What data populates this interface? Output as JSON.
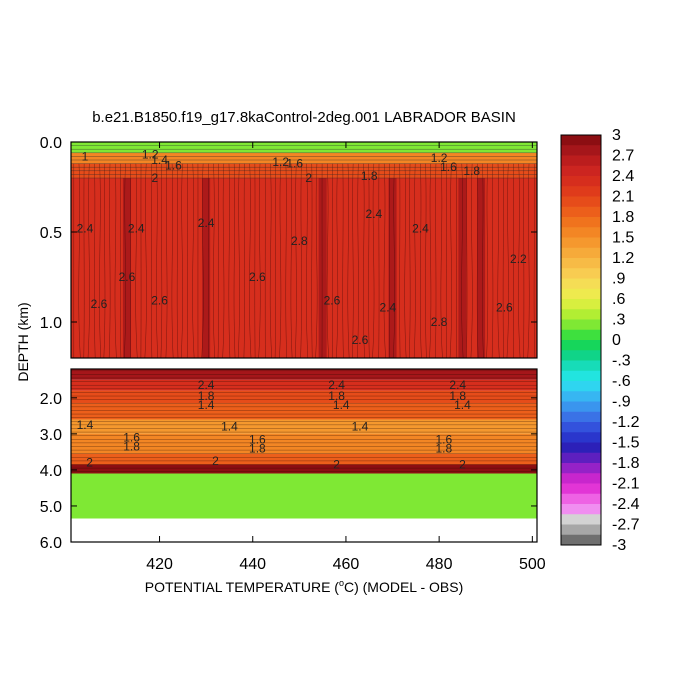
{
  "chart_data": {
    "type": "contour",
    "title": "b.e21.B1850.f19_g17.8kaControl-2deg.001 LABRADOR BASIN",
    "xlabel": "POTENTIAL TEMPERATURE (°C) (MODEL - OBS)",
    "xlabel_parts": [
      "POTENTIAL TEMPERATURE (",
      "o",
      "C) (MODEL - OBS)"
    ],
    "ylabel": "DEPTH (km)",
    "xlim": [
      401,
      501
    ],
    "x_ticks": [
      420,
      440,
      460,
      480,
      500
    ],
    "x_tick_labels": [
      "420",
      "440",
      "460",
      "480",
      "500"
    ],
    "panels": [
      {
        "name": "upper",
        "ylim": [
          0.0,
          1.2
        ],
        "y_ticks": [
          0.0,
          0.5,
          1.0
        ],
        "y_tick_labels": [
          "0.0",
          "0.5",
          "1.0"
        ],
        "bands": [
          {
            "top": 0.0,
            "bottom": 0.06,
            "value": 0.3
          },
          {
            "top": 0.06,
            "bottom": 0.12,
            "value": 1.6
          },
          {
            "top": 0.12,
            "bottom": 0.2,
            "value": 2.1
          },
          {
            "top": 0.2,
            "bottom": 1.2,
            "value": 2.4
          }
        ],
        "warm_columns": [
          413,
          430,
          455,
          470,
          485,
          489
        ],
        "contour_labels": [
          {
            "x": 404,
            "y": 0.08,
            "text": "1"
          },
          {
            "x": 418,
            "y": 0.07,
            "text": "1.2"
          },
          {
            "x": 420,
            "y": 0.1,
            "text": "1.4"
          },
          {
            "x": 423,
            "y": 0.13,
            "text": "1.6"
          },
          {
            "x": 446,
            "y": 0.11,
            "text": "1.2"
          },
          {
            "x": 449,
            "y": 0.12,
            "text": "1.6"
          },
          {
            "x": 480,
            "y": 0.09,
            "text": "1.2"
          },
          {
            "x": 482,
            "y": 0.14,
            "text": "1.6"
          },
          {
            "x": 487,
            "y": 0.16,
            "text": "1.8"
          },
          {
            "x": 419,
            "y": 0.2,
            "text": "2"
          },
          {
            "x": 452,
            "y": 0.2,
            "text": "2"
          },
          {
            "x": 465,
            "y": 0.19,
            "text": "1.8"
          },
          {
            "x": 404,
            "y": 0.48,
            "text": "2.4"
          },
          {
            "x": 415,
            "y": 0.48,
            "text": "2.4"
          },
          {
            "x": 430,
            "y": 0.45,
            "text": "2.4"
          },
          {
            "x": 450,
            "y": 0.55,
            "text": "2.8"
          },
          {
            "x": 466,
            "y": 0.4,
            "text": "2.4"
          },
          {
            "x": 476,
            "y": 0.48,
            "text": "2.4"
          },
          {
            "x": 497,
            "y": 0.65,
            "text": "2.2"
          },
          {
            "x": 407,
            "y": 0.9,
            "text": "2.6"
          },
          {
            "x": 413,
            "y": 0.75,
            "text": "2.6"
          },
          {
            "x": 420,
            "y": 0.88,
            "text": "2.6"
          },
          {
            "x": 441,
            "y": 0.75,
            "text": "2.6"
          },
          {
            "x": 457,
            "y": 0.88,
            "text": "2.6"
          },
          {
            "x": 469,
            "y": 0.92,
            "text": "2.4"
          },
          {
            "x": 480,
            "y": 1.0,
            "text": "2.8"
          },
          {
            "x": 494,
            "y": 0.92,
            "text": "2.6"
          },
          {
            "x": 463,
            "y": 1.1,
            "text": "2.6"
          }
        ]
      },
      {
        "name": "lower",
        "ylim": [
          1.2,
          6.0
        ],
        "y_ticks": [
          2.0,
          3.0,
          4.0,
          5.0,
          6.0
        ],
        "y_tick_labels": [
          "2.0",
          "3.0",
          "4.0",
          "5.0",
          "6.0"
        ],
        "bands": [
          {
            "top": 1.2,
            "bottom": 1.5,
            "value": 2.7
          },
          {
            "top": 1.5,
            "bottom": 1.8,
            "value": 2.4
          },
          {
            "top": 1.8,
            "bottom": 2.15,
            "value": 2.1
          },
          {
            "top": 2.15,
            "bottom": 2.6,
            "value": 1.8
          },
          {
            "top": 2.6,
            "bottom": 3.0,
            "value": 1.5
          },
          {
            "top": 3.0,
            "bottom": 3.55,
            "value": 1.65
          },
          {
            "top": 3.55,
            "bottom": 3.85,
            "value": 1.9
          },
          {
            "top": 3.85,
            "bottom": 4.1,
            "value": 2.9
          },
          {
            "top": 4.1,
            "bottom": 5.35,
            "value": 0.3
          }
        ],
        "contour_labels": [
          {
            "x": 430,
            "y": 1.65,
            "text": "2.4"
          },
          {
            "x": 430,
            "y": 1.95,
            "text": "1.8"
          },
          {
            "x": 430,
            "y": 2.2,
            "text": "1.4"
          },
          {
            "x": 458,
            "y": 1.65,
            "text": "2.4"
          },
          {
            "x": 458,
            "y": 1.95,
            "text": "1.8"
          },
          {
            "x": 459,
            "y": 2.2,
            "text": "1.4"
          },
          {
            "x": 484,
            "y": 1.65,
            "text": "2.4"
          },
          {
            "x": 484,
            "y": 1.95,
            "text": "1.8"
          },
          {
            "x": 485,
            "y": 2.2,
            "text": "1.4"
          },
          {
            "x": 404,
            "y": 2.75,
            "text": "1.4"
          },
          {
            "x": 435,
            "y": 2.8,
            "text": "1.4"
          },
          {
            "x": 463,
            "y": 2.8,
            "text": "1.4"
          },
          {
            "x": 414,
            "y": 3.1,
            "text": "1.6"
          },
          {
            "x": 414,
            "y": 3.35,
            "text": "1.8"
          },
          {
            "x": 441,
            "y": 3.15,
            "text": "1.6"
          },
          {
            "x": 441,
            "y": 3.4,
            "text": "1.8"
          },
          {
            "x": 481,
            "y": 3.15,
            "text": "1.6"
          },
          {
            "x": 481,
            "y": 3.4,
            "text": "1.8"
          },
          {
            "x": 405,
            "y": 3.8,
            "text": "2"
          },
          {
            "x": 432,
            "y": 3.75,
            "text": "2"
          },
          {
            "x": 458,
            "y": 3.85,
            "text": "2"
          },
          {
            "x": 485,
            "y": 3.85,
            "text": "2"
          }
        ]
      }
    ],
    "colorbar": {
      "labels": [
        "3",
        "2.7",
        "2.4",
        "2.1",
        "1.8",
        "1.5",
        "1.2",
        ".9",
        ".6",
        ".3",
        "0",
        "-.3",
        "-.6",
        "-.9",
        "-1.2",
        "-1.5",
        "-1.8",
        "-2.1",
        "-2.4",
        "-2.7",
        "-3"
      ],
      "colors": [
        "#8c0e12",
        "#a5161a",
        "#bb1d1d",
        "#cc2520",
        "#d62e1d",
        "#df3b1b",
        "#e64c1a",
        "#ec5f1b",
        "#f0731d",
        "#f38624",
        "#f5982e",
        "#f6aa3a",
        "#f7bb46",
        "#f8cc51",
        "#f5dd55",
        "#eeea4e",
        "#d8ef3f",
        "#b2ee33",
        "#7fe834",
        "#3ee03e",
        "#16d65b",
        "#10d488",
        "#17dcb8",
        "#22e4df",
        "#2fd5f0",
        "#37b6f2",
        "#3a95ee",
        "#3a72e6",
        "#3352dc",
        "#2a36cc",
        "#2c20b8",
        "#5d1fbf",
        "#9522c7",
        "#c826cd",
        "#e235d6",
        "#ee62e4",
        "#f08ef0",
        "#d3d3d3",
        "#a7a7a7",
        "#6f6f6f"
      ]
    }
  }
}
